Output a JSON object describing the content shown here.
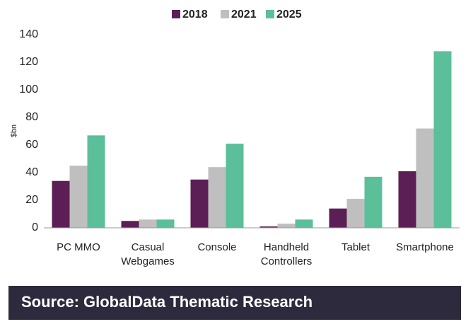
{
  "chart_data": {
    "type": "bar",
    "y_label": "$bn",
    "categories": [
      [
        "PC MMO"
      ],
      [
        "Casual",
        "Webgames"
      ],
      [
        "Console"
      ],
      [
        "Handheld",
        "Controllers"
      ],
      [
        "Tablet"
      ],
      [
        "Smartphone"
      ]
    ],
    "series": [
      {
        "name": "2018",
        "color": "#5c1f55",
        "values": [
          34,
          5,
          35,
          1,
          14,
          41
        ]
      },
      {
        "name": "2021",
        "color": "#c0bfc0",
        "values": [
          45,
          6,
          44,
          3,
          21,
          72
        ]
      },
      {
        "name": "2025",
        "color": "#5bbf9a",
        "values": [
          67,
          6,
          61,
          6,
          37,
          128
        ]
      }
    ],
    "ylim": [
      0,
      140
    ],
    "yticks": [
      0,
      20,
      40,
      60,
      80,
      100,
      120,
      140
    ],
    "legend": "top",
    "source": "Source:  GlobalData Thematic Research"
  }
}
